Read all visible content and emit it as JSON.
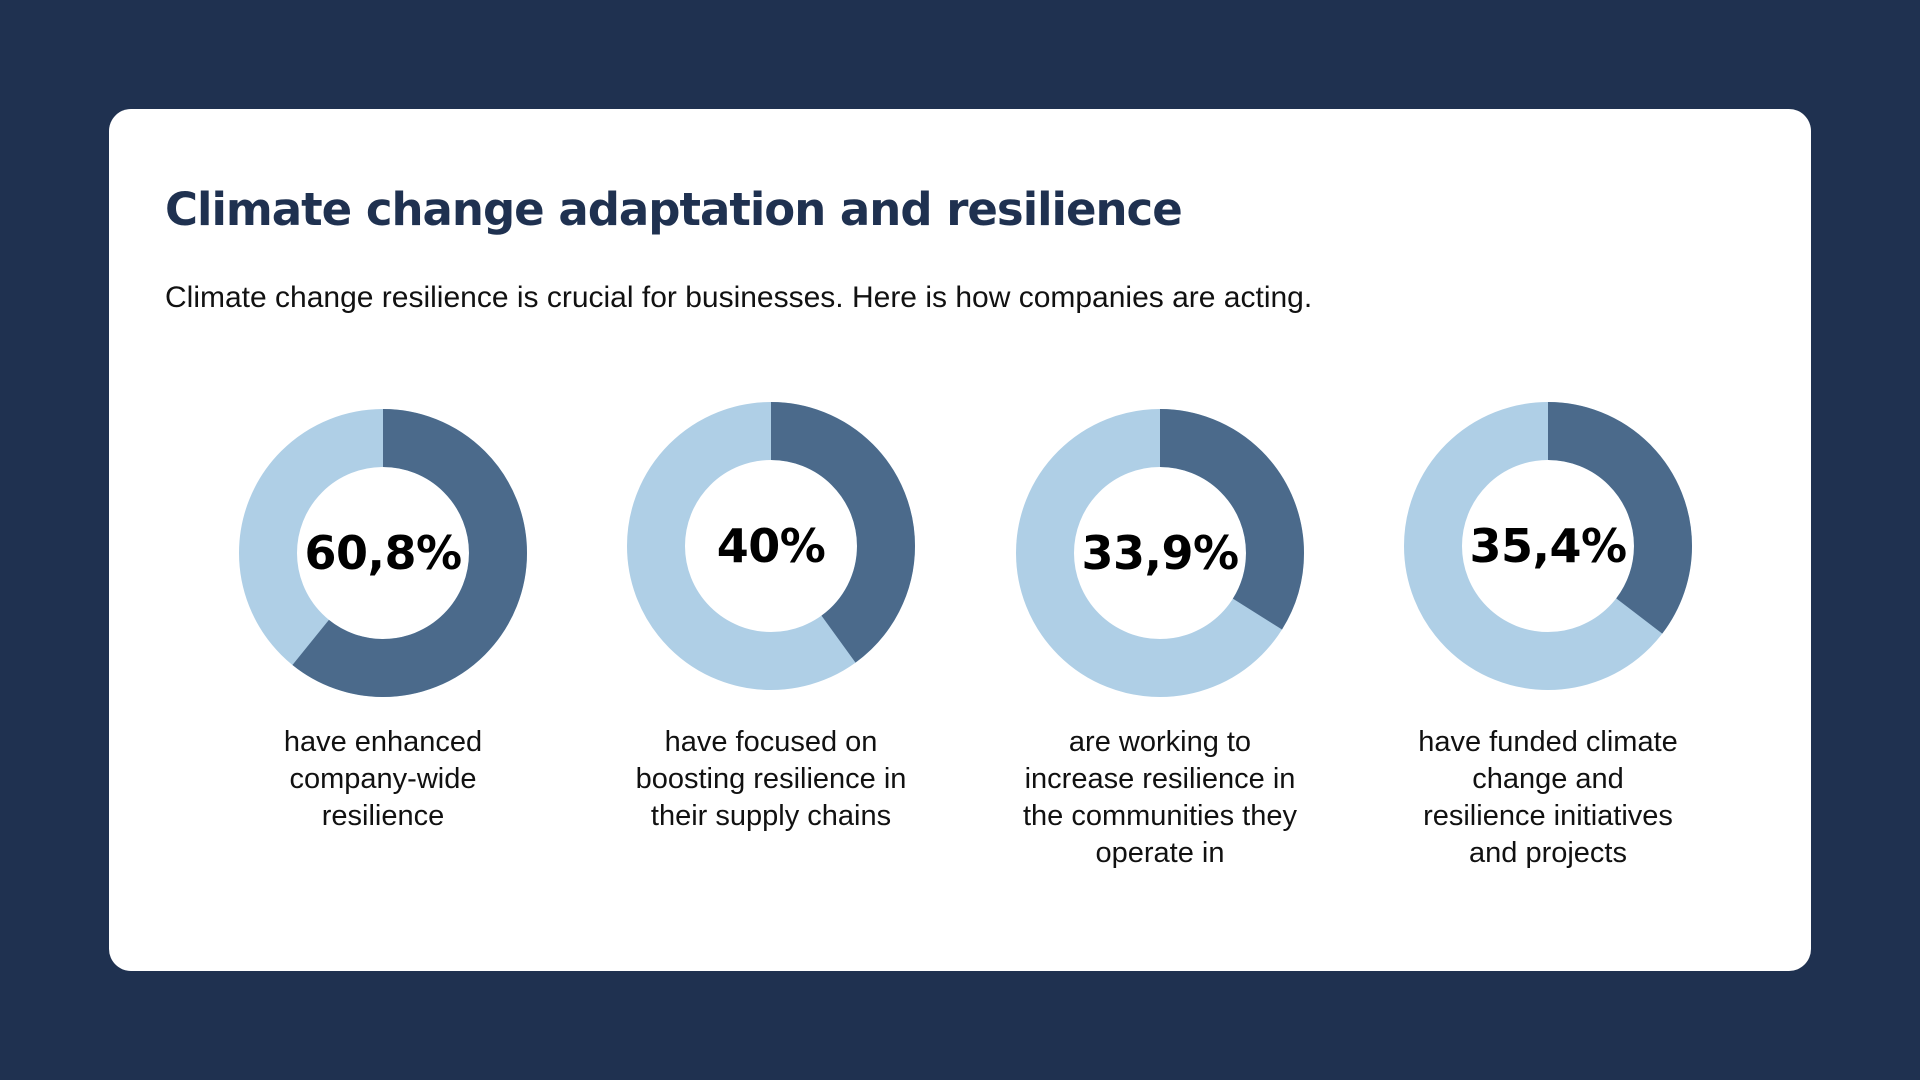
{
  "card": {
    "title": "Climate change adaptation and resilience",
    "subtitle": "Climate change resilience is crucial for businesses. Here is how companies are acting."
  },
  "colors": {
    "background": "#1f3150",
    "card": "#ffffff",
    "title": "#1f3150",
    "filled": "#4b6a8b",
    "remaining": "#afcfe6"
  },
  "chart_data": [
    {
      "type": "pie",
      "variant": "donut",
      "value": 60.8,
      "label": "60,8%",
      "description": "have enhanced company-wide resilience"
    },
    {
      "type": "pie",
      "variant": "donut",
      "value": 40,
      "label": "40%",
      "description": "have focused on boosting resilience in their supply chains"
    },
    {
      "type": "pie",
      "variant": "donut",
      "value": 33.9,
      "label": "33,9%",
      "description": "are working to increase resilience in the communities they operate in"
    },
    {
      "type": "pie",
      "variant": "donut",
      "value": 35.4,
      "label": "35,4%",
      "description": "have funded climate change and resilience initiatives and projects"
    }
  ]
}
